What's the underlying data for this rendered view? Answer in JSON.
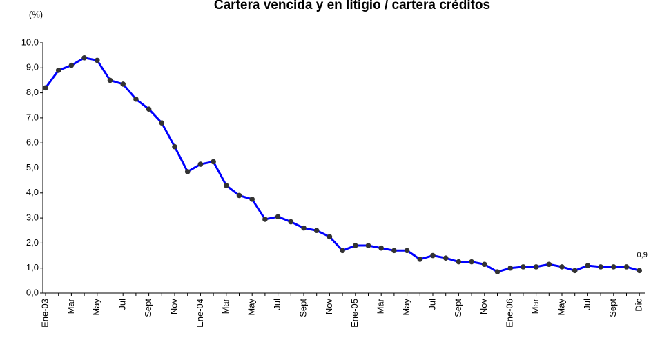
{
  "chart_data": {
    "type": "line",
    "title": "Cartera vencida y en litigio / cartera créditos",
    "y_label": "(%)",
    "categories": [
      "Ene-03",
      null,
      "Mar",
      null,
      "May",
      null,
      "Jul",
      null,
      "Sept",
      null,
      "Nov",
      null,
      "Ene-04",
      null,
      "Mar",
      null,
      "May",
      null,
      "Jul",
      null,
      "Sept",
      null,
      "Nov",
      null,
      "Ene-05",
      null,
      "Mar",
      null,
      "May",
      null,
      "Jul",
      null,
      "Sept",
      null,
      "Nov",
      null,
      "Ene-06",
      null,
      "Mar",
      null,
      "May",
      null,
      "Jul",
      null,
      "Sept",
      null,
      "Dic"
    ],
    "series": [
      {
        "color": "#0000ff",
        "marker_color": "#333333",
        "values": [
          8.2,
          8.9,
          9.1,
          9.4,
          9.3,
          8.5,
          8.35,
          7.75,
          7.35,
          6.8,
          5.85,
          4.85,
          5.15,
          5.25,
          4.3,
          3.9,
          3.75,
          2.95,
          3.05,
          2.85,
          2.6,
          2.5,
          2.25,
          1.7,
          1.9,
          1.9,
          1.8,
          1.7,
          1.7,
          1.35,
          1.5,
          1.4,
          1.25,
          1.25,
          1.15,
          0.85,
          1.0,
          1.05,
          1.05,
          1.15,
          1.05,
          0.9,
          1.1,
          1.05,
          1.05,
          1.05,
          0.9
        ],
        "value_labels": [
          null,
          null,
          null,
          null,
          null,
          null,
          null,
          null,
          null,
          null,
          null,
          null,
          null,
          null,
          null,
          null,
          null,
          null,
          null,
          null,
          null,
          null,
          null,
          null,
          null,
          null,
          null,
          null,
          null,
          null,
          null,
          null,
          null,
          null,
          null,
          null,
          null,
          null,
          null,
          null,
          null,
          null,
          null,
          null,
          null,
          null,
          "0,9"
        ]
      }
    ],
    "ylim": [
      0,
      10
    ],
    "yticks": [
      {
        "value": 0,
        "label": "0,0"
      },
      {
        "value": 1,
        "label": "1,0"
      },
      {
        "value": 2,
        "label": "2,0"
      },
      {
        "value": 3,
        "label": "3,0"
      },
      {
        "value": 4,
        "label": "4,0"
      },
      {
        "value": 5,
        "label": "5,0"
      },
      {
        "value": 6,
        "label": "6,0"
      },
      {
        "value": 7,
        "label": "7,0"
      },
      {
        "value": 8,
        "label": "8,0"
      },
      {
        "value": 9,
        "label": "9,0"
      },
      {
        "value": 10,
        "label": "10,0"
      }
    ],
    "grid": false
  }
}
